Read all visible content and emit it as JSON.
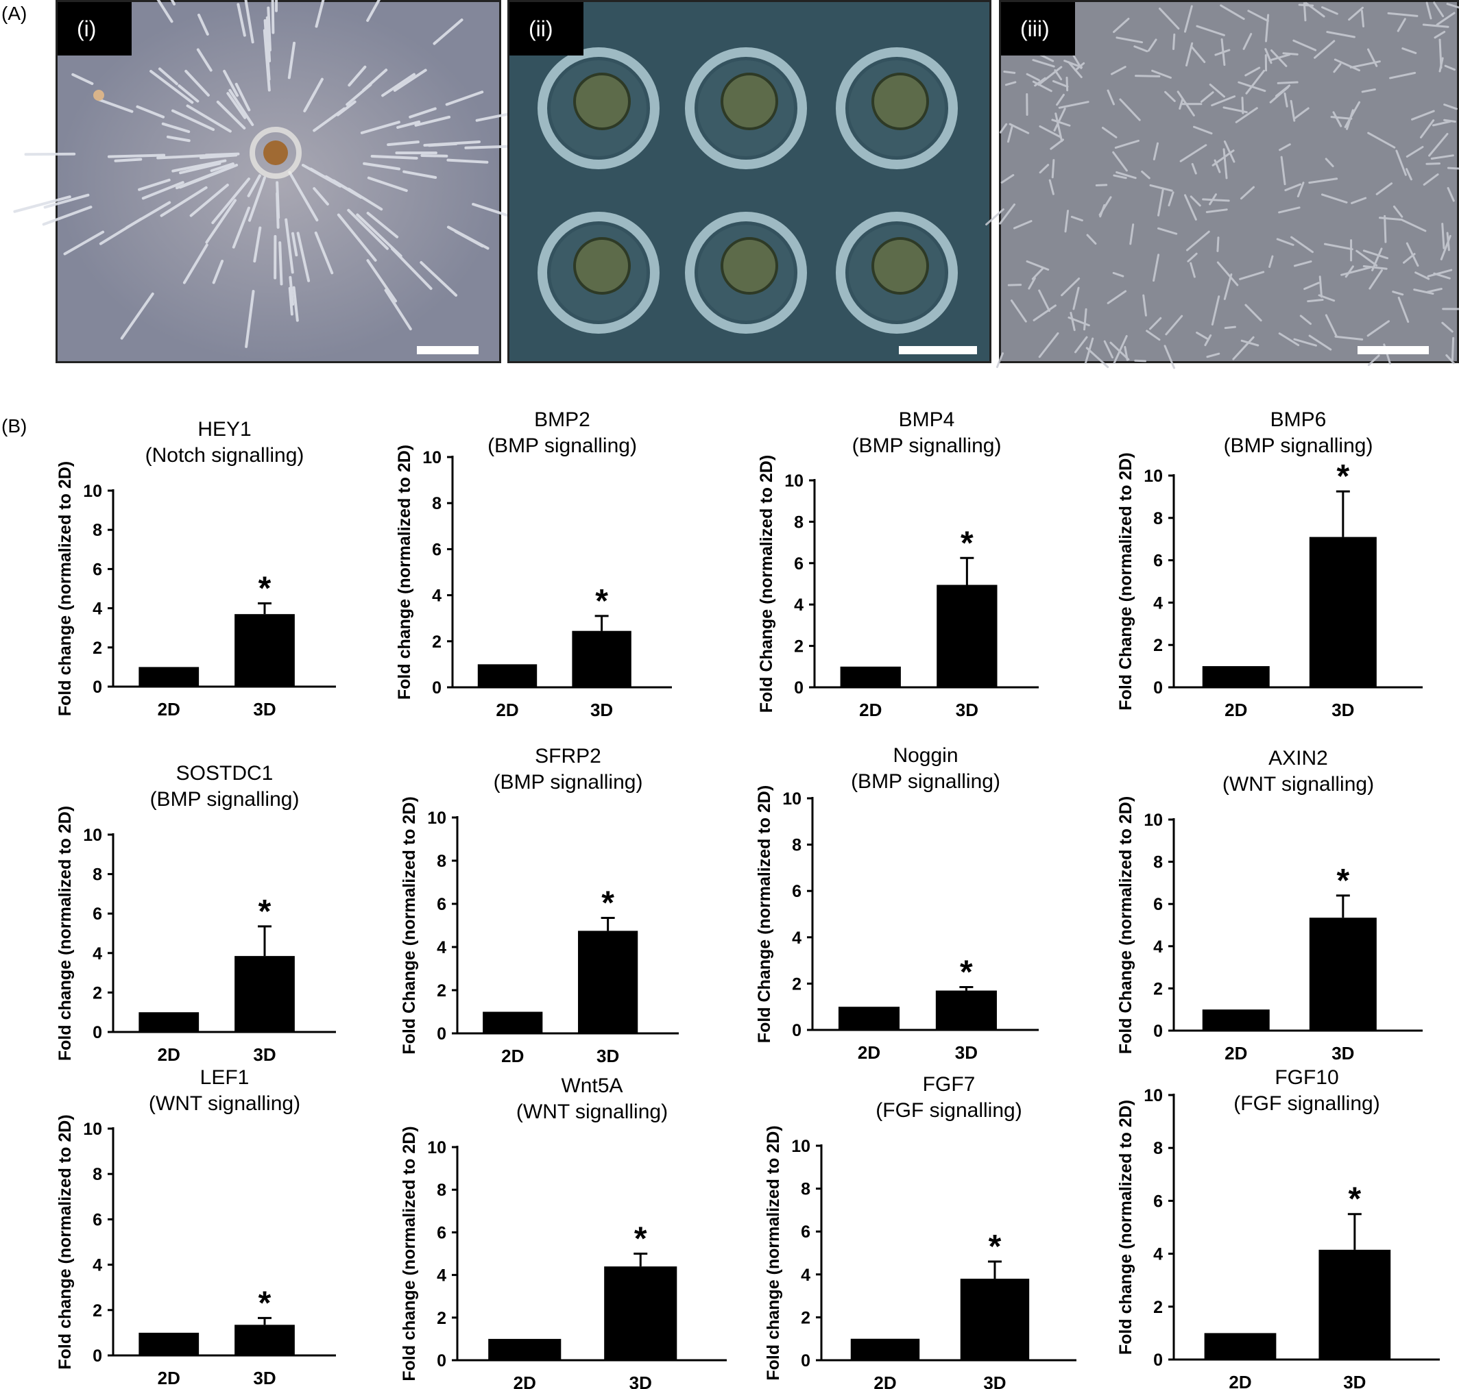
{
  "panel_a": {
    "label": "(A)",
    "images": [
      {
        "tag": "(i)",
        "icon": "fibroblast-monolayer-micrograph"
      },
      {
        "tag": "(ii)",
        "icon": "spheroid-microwell-array-micrograph"
      },
      {
        "tag": "(iii)",
        "icon": "dense-cell-culture-micrograph"
      }
    ]
  },
  "panel_b": {
    "label": "(B)"
  },
  "chart_data": [
    {
      "type": "bar",
      "title": "HEY1",
      "subtitle": "(Notch signalling)",
      "ylabel": "Fold change (normalized to 2D)",
      "categories": [
        "2D",
        "3D"
      ],
      "values": [
        1.0,
        3.7
      ],
      "errors": [
        0.02,
        0.55
      ],
      "significance": [
        "",
        "*"
      ],
      "ylim": [
        0,
        10
      ],
      "yticks": [
        0,
        2,
        4,
        6,
        8,
        10
      ]
    },
    {
      "type": "bar",
      "title": "BMP2",
      "subtitle": "(BMP signalling)",
      "ylabel": "Fold change (normalized to 2D)",
      "categories": [
        "2D",
        "3D"
      ],
      "values": [
        1.0,
        2.45
      ],
      "errors": [
        0.02,
        0.65
      ],
      "significance": [
        "",
        "*"
      ],
      "ylim": [
        0,
        10
      ],
      "yticks": [
        0,
        2,
        4,
        6,
        8,
        10
      ]
    },
    {
      "type": "bar",
      "title": "BMP4",
      "subtitle": "(BMP signalling)",
      "ylabel": "Fold Change (normalized to 2D)",
      "categories": [
        "2D",
        "3D"
      ],
      "values": [
        1.0,
        4.95
      ],
      "errors": [
        0.02,
        1.3
      ],
      "significance": [
        "",
        "*"
      ],
      "ylim": [
        0,
        10
      ],
      "yticks": [
        0,
        2,
        4,
        6,
        8,
        10
      ]
    },
    {
      "type": "bar",
      "title": "BMP6",
      "subtitle": "(BMP signalling)",
      "ylabel": "Fold Change (normalized to 2D)",
      "categories": [
        "2D",
        "3D"
      ],
      "values": [
        1.0,
        7.1
      ],
      "errors": [
        0.02,
        2.15
      ],
      "significance": [
        "",
        "*"
      ],
      "ylim": [
        0,
        10
      ],
      "yticks": [
        0,
        2,
        4,
        6,
        8,
        10
      ]
    },
    {
      "type": "bar",
      "title": "SOSTDC1",
      "subtitle": "(BMP signalling)",
      "ylabel": "Fold change (normalized to 2D)",
      "categories": [
        "2D",
        "3D"
      ],
      "values": [
        1.0,
        3.85
      ],
      "errors": [
        0.02,
        1.5
      ],
      "significance": [
        "",
        "*"
      ],
      "ylim": [
        0,
        10
      ],
      "yticks": [
        0,
        2,
        4,
        6,
        8,
        10
      ]
    },
    {
      "type": "bar",
      "title": "SFRP2",
      "subtitle": "(BMP signalling)",
      "ylabel": "Fold Change (normalized to 2D)",
      "categories": [
        "2D",
        "3D"
      ],
      "values": [
        1.0,
        4.75
      ],
      "errors": [
        0.02,
        0.6
      ],
      "significance": [
        "",
        "*"
      ],
      "ylim": [
        0,
        10
      ],
      "yticks": [
        0,
        2,
        4,
        6,
        8,
        10
      ]
    },
    {
      "type": "bar",
      "title": "Noggin",
      "subtitle": "(BMP signalling)",
      "ylabel": "Fold Change (normalized to 2D)",
      "categories": [
        "2D",
        "3D"
      ],
      "values": [
        1.0,
        1.7
      ],
      "errors": [
        0.02,
        0.15
      ],
      "significance": [
        "",
        "*"
      ],
      "ylim": [
        0,
        10
      ],
      "yticks": [
        0,
        2,
        4,
        6,
        8,
        10
      ]
    },
    {
      "type": "bar",
      "title": "AXIN2",
      "subtitle": "(WNT signalling)",
      "ylabel": "Fold Change (normalized to 2D)",
      "categories": [
        "2D",
        "3D"
      ],
      "values": [
        1.0,
        5.35
      ],
      "errors": [
        0.02,
        1.05
      ],
      "significance": [
        "",
        "*"
      ],
      "ylim": [
        0,
        10
      ],
      "yticks": [
        0,
        2,
        4,
        6,
        8,
        10
      ]
    },
    {
      "type": "bar",
      "title": "LEF1",
      "subtitle": "(WNT signalling)",
      "ylabel": "Fold change (normalized to 2D)",
      "categories": [
        "2D",
        "3D"
      ],
      "values": [
        1.0,
        1.35
      ],
      "errors": [
        0.02,
        0.3
      ],
      "significance": [
        "",
        "*"
      ],
      "ylim": [
        0,
        10
      ],
      "yticks": [
        0,
        2,
        4,
        6,
        8,
        10
      ]
    },
    {
      "type": "bar",
      "title": "Wnt5A",
      "subtitle": "(WNT signalling)",
      "ylabel": "Fold change (normalized to 2D)",
      "categories": [
        "2D",
        "3D"
      ],
      "values": [
        1.0,
        4.4
      ],
      "errors": [
        0.02,
        0.6
      ],
      "significance": [
        "",
        "*"
      ],
      "ylim": [
        0,
        10
      ],
      "yticks": [
        0,
        2,
        4,
        6,
        8,
        10
      ]
    },
    {
      "type": "bar",
      "title": "FGF7",
      "subtitle": "(FGF signalling)",
      "ylabel": "Fold change (normalized to 2D)",
      "categories": [
        "2D",
        "3D"
      ],
      "values": [
        1.0,
        3.8
      ],
      "errors": [
        0.02,
        0.8
      ],
      "significance": [
        "",
        "*"
      ],
      "ylim": [
        0,
        10
      ],
      "yticks": [
        0,
        2,
        4,
        6,
        8,
        10
      ]
    },
    {
      "type": "bar",
      "title": "FGF10",
      "subtitle": "(FGF signalling)",
      "ylabel": "Fold change (normalized to 2D)",
      "categories": [
        "2D",
        "3D"
      ],
      "values": [
        1.0,
        4.15
      ],
      "errors": [
        0.02,
        1.35
      ],
      "significance": [
        "",
        "*"
      ],
      "ylim": [
        0,
        10
      ],
      "yticks": [
        0,
        2,
        4,
        6,
        8,
        10
      ]
    }
  ]
}
